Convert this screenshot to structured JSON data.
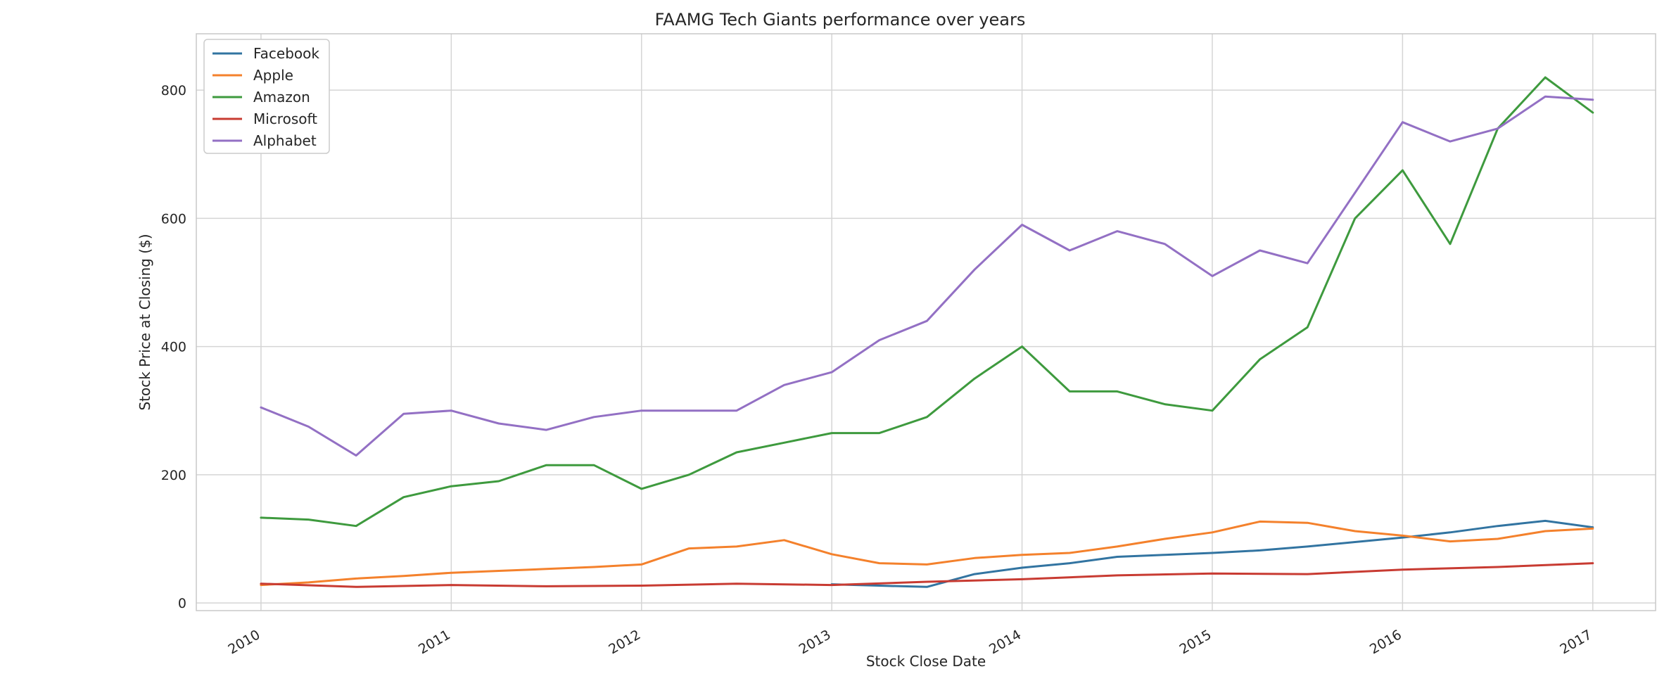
{
  "chart_data": {
    "type": "line",
    "title": "FAAMG Tech Giants performance over years",
    "xlabel": "Stock Close Date",
    "ylabel": "Stock Price at Closing ($)",
    "xlim": [
      2009.66,
      2017.33
    ],
    "ylim": [
      -12,
      888
    ],
    "x_ticks": [
      2010,
      2011,
      2012,
      2013,
      2014,
      2015,
      2016,
      2017
    ],
    "x_tick_labels": [
      "2010",
      "2011",
      "2012",
      "2013",
      "2014",
      "2015",
      "2016",
      "2017"
    ],
    "y_ticks": [
      0,
      200,
      400,
      600,
      800
    ],
    "y_tick_labels": [
      "0",
      "200",
      "400",
      "600",
      "800"
    ],
    "grid": true,
    "legend_position": "top-left",
    "series": [
      {
        "name": "Facebook",
        "color": "#3274a1",
        "x": [
          2013.0,
          2013.25,
          2013.5,
          2013.75,
          2014.0,
          2014.25,
          2014.5,
          2014.75,
          2015.0,
          2015.25,
          2015.5,
          2015.75,
          2016.0,
          2016.25,
          2016.5,
          2016.75,
          2017.0
        ],
        "y": [
          29,
          27,
          25,
          45,
          55,
          62,
          72,
          75,
          78,
          82,
          88,
          95,
          102,
          110,
          120,
          128,
          118
        ]
      },
      {
        "name": "Apple",
        "color": "#f4812c",
        "x": [
          2010.0,
          2010.25,
          2010.5,
          2010.75,
          2011.0,
          2011.25,
          2011.5,
          2011.75,
          2012.0,
          2012.25,
          2012.5,
          2012.75,
          2013.0,
          2013.25,
          2013.5,
          2013.75,
          2014.0,
          2014.25,
          2014.5,
          2014.75,
          2015.0,
          2015.25,
          2015.5,
          2015.75,
          2016.0,
          2016.25,
          2016.5,
          2016.75,
          2017.0
        ],
        "y": [
          28,
          32,
          38,
          42,
          47,
          50,
          53,
          56,
          60,
          85,
          88,
          98,
          76,
          62,
          60,
          70,
          75,
          78,
          88,
          100,
          110,
          127,
          125,
          112,
          105,
          96,
          100,
          112,
          116
        ]
      },
      {
        "name": "Amazon",
        "color": "#3e9a3e",
        "x": [
          2010.0,
          2010.25,
          2010.5,
          2010.75,
          2011.0,
          2011.25,
          2011.5,
          2011.75,
          2012.0,
          2012.25,
          2012.5,
          2012.75,
          2013.0,
          2013.25,
          2013.5,
          2013.75,
          2014.0,
          2014.25,
          2014.5,
          2014.75,
          2015.0,
          2015.25,
          2015.5,
          2015.75,
          2016.0,
          2016.25,
          2016.5,
          2016.75,
          2017.0
        ],
        "y": [
          133,
          130,
          120,
          165,
          182,
          190,
          215,
          215,
          178,
          200,
          235,
          250,
          265,
          265,
          290,
          350,
          400,
          330,
          330,
          310,
          300,
          380,
          430,
          600,
          675,
          560,
          740,
          820,
          765
        ]
      },
      {
        "name": "Microsoft",
        "color": "#c83b32",
        "x": [
          2010.0,
          2010.5,
          2011.0,
          2011.5,
          2012.0,
          2012.5,
          2013.0,
          2013.5,
          2014.0,
          2014.5,
          2015.0,
          2015.5,
          2016.0,
          2016.5,
          2017.0
        ],
        "y": [
          30,
          25,
          28,
          26,
          27,
          30,
          28,
          33,
          37,
          43,
          46,
          45,
          52,
          56,
          62
        ]
      },
      {
        "name": "Alphabet",
        "color": "#9370c4",
        "x": [
          2010.0,
          2010.25,
          2010.5,
          2010.75,
          2011.0,
          2011.25,
          2011.5,
          2011.75,
          2012.0,
          2012.25,
          2012.5,
          2012.75,
          2013.0,
          2013.25,
          2013.5,
          2013.75,
          2014.0,
          2014.25,
          2014.5,
          2014.75,
          2015.0,
          2015.25,
          2015.5,
          2015.75,
          2016.0,
          2016.25,
          2016.5,
          2016.75,
          2017.0
        ],
        "y": [
          305,
          275,
          230,
          295,
          300,
          280,
          270,
          290,
          300,
          300,
          300,
          340,
          360,
          410,
          440,
          520,
          590,
          550,
          580,
          560,
          510,
          550,
          530,
          640,
          750,
          720,
          740,
          790,
          785
        ]
      }
    ]
  }
}
